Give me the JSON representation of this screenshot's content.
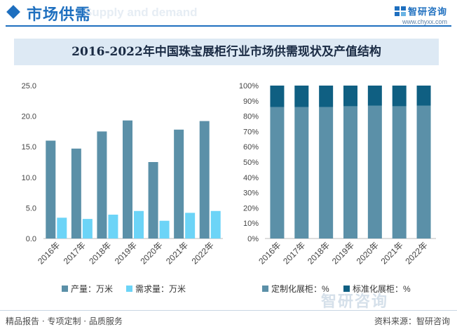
{
  "header": {
    "title": "市场供需",
    "ghost_text": "Supply and demand",
    "brand_name": "智研咨询",
    "brand_url": "www.chyxx.com"
  },
  "chart_title": "2016-2022年中国珠宝展柜行业市场供需现状及产值结构",
  "colors": {
    "accent": "#1e6fbf",
    "production": "#5b90a8",
    "demand": "#6cd4f7",
    "customized": "#5b90a8",
    "standard": "#0f5f82"
  },
  "chart_data": [
    {
      "type": "bar",
      "categories": [
        "2016年",
        "2017年",
        "2018年",
        "2019年",
        "2020年",
        "2021年",
        "2022年"
      ],
      "series": [
        {
          "name": "产量：万米",
          "values": [
            16.0,
            14.7,
            17.5,
            19.3,
            12.5,
            17.8,
            19.2
          ]
        },
        {
          "name": "需求量：万米",
          "values": [
            3.4,
            3.2,
            3.9,
            4.5,
            2.9,
            4.2,
            4.5
          ]
        }
      ],
      "ylim": [
        0,
        25
      ],
      "yticks": [
        "0.0",
        "5.0",
        "10.0",
        "15.0",
        "20.0",
        "25.0"
      ],
      "grid": false,
      "legend_position": "bottom"
    },
    {
      "type": "bar",
      "stacked": true,
      "categories": [
        "2016年",
        "2017年",
        "2018年",
        "2019年",
        "2020年",
        "2021年",
        "2022年"
      ],
      "series": [
        {
          "name": "定制化展柜：%",
          "values": [
            86,
            86,
            86,
            86.5,
            86.8,
            86.5,
            86.8
          ]
        },
        {
          "name": "标准化展柜：%",
          "values": [
            14,
            14,
            14,
            13.5,
            13.2,
            13.5,
            13.2
          ]
        }
      ],
      "ylim": [
        0,
        100
      ],
      "yticks": [
        "0%",
        "10%",
        "20%",
        "30%",
        "40%",
        "50%",
        "60%",
        "70%",
        "80%",
        "90%",
        "100%"
      ],
      "grid": false,
      "legend_position": "bottom"
    }
  ],
  "footer": {
    "left": "精品报告 · 专项定制 · 品质服务",
    "right": "资料来源：智研咨询",
    "watermark": "智研咨询"
  }
}
